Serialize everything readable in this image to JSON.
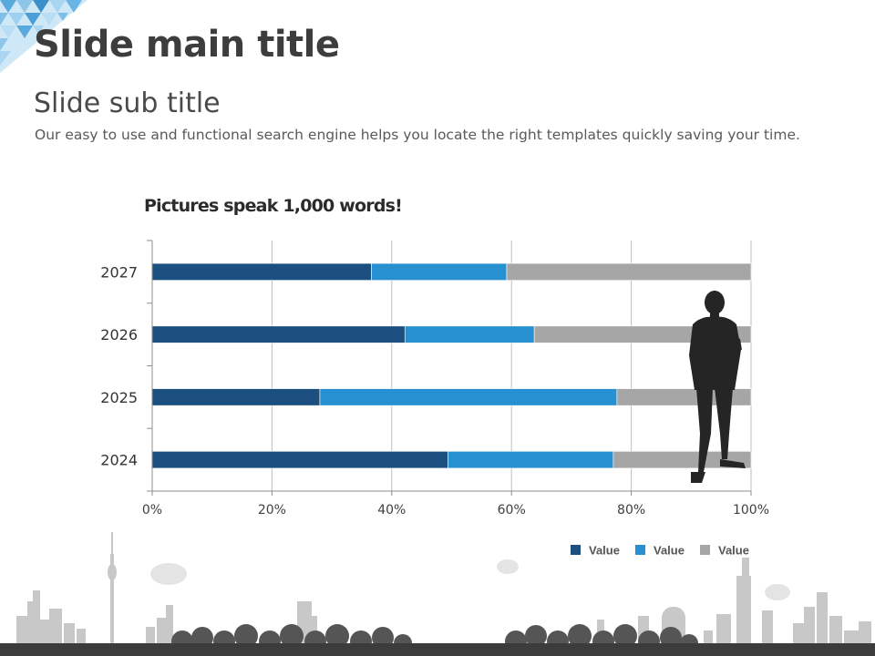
{
  "slide": {
    "title": "Slide main title",
    "subtitle": "Slide sub title",
    "body": "Our easy to use and functional search engine helps you locate the right templates quickly  saving your time."
  },
  "chart_data": {
    "type": "bar",
    "orientation": "horizontal",
    "stacked": "percent",
    "title": "Pictures speak 1,000 words!",
    "categories": [
      "2027",
      "2026",
      "2025",
      "2024"
    ],
    "series": [
      {
        "name": "Value",
        "color": "#1a4f80",
        "values": [
          36.6,
          42.2,
          28.0,
          49.4
        ]
      },
      {
        "name": "Value",
        "color": "#2690d0",
        "values": [
          22.6,
          21.6,
          49.6,
          27.6
        ]
      },
      {
        "name": "Value",
        "color": "#a6a6a6",
        "values": [
          40.8,
          36.2,
          22.4,
          23.0
        ]
      }
    ],
    "xlim": [
      0,
      100
    ],
    "xticks": [
      "0%",
      "20%",
      "40%",
      "60%",
      "80%",
      "100%"
    ],
    "grid": true,
    "legend": "bottom-right"
  },
  "decor": {
    "icons": [
      "corner-triangle-pattern-icon",
      "businessman-silhouette-icon",
      "city-skyline-icon"
    ]
  }
}
